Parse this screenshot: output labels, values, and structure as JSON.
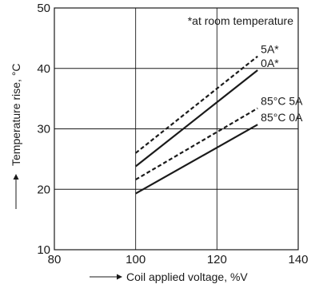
{
  "chart_data": {
    "type": "line",
    "title": "",
    "xlabel": "Coil applied voltage, %V",
    "ylabel": "Temperature rise, °C",
    "xlim": [
      80,
      140
    ],
    "ylim": [
      10,
      50
    ],
    "xticks": [
      80,
      100,
      120,
      140
    ],
    "yticks": [
      10,
      20,
      30,
      40,
      50
    ],
    "grid": true,
    "note": "*at room temperature",
    "series": [
      {
        "name": "5A*",
        "style": "dashed",
        "x": [
          100,
          130
        ],
        "y": [
          26,
          42
        ]
      },
      {
        "name": "0A*",
        "style": "solid",
        "x": [
          100,
          130
        ],
        "y": [
          23.8,
          39.7
        ]
      },
      {
        "name": "85°C 5A",
        "style": "dashed",
        "x": [
          100,
          130
        ],
        "y": [
          21.6,
          33.4
        ]
      },
      {
        "name": "85°C 0A",
        "style": "solid",
        "x": [
          100,
          130
        ],
        "y": [
          19.3,
          30.7
        ]
      }
    ]
  }
}
